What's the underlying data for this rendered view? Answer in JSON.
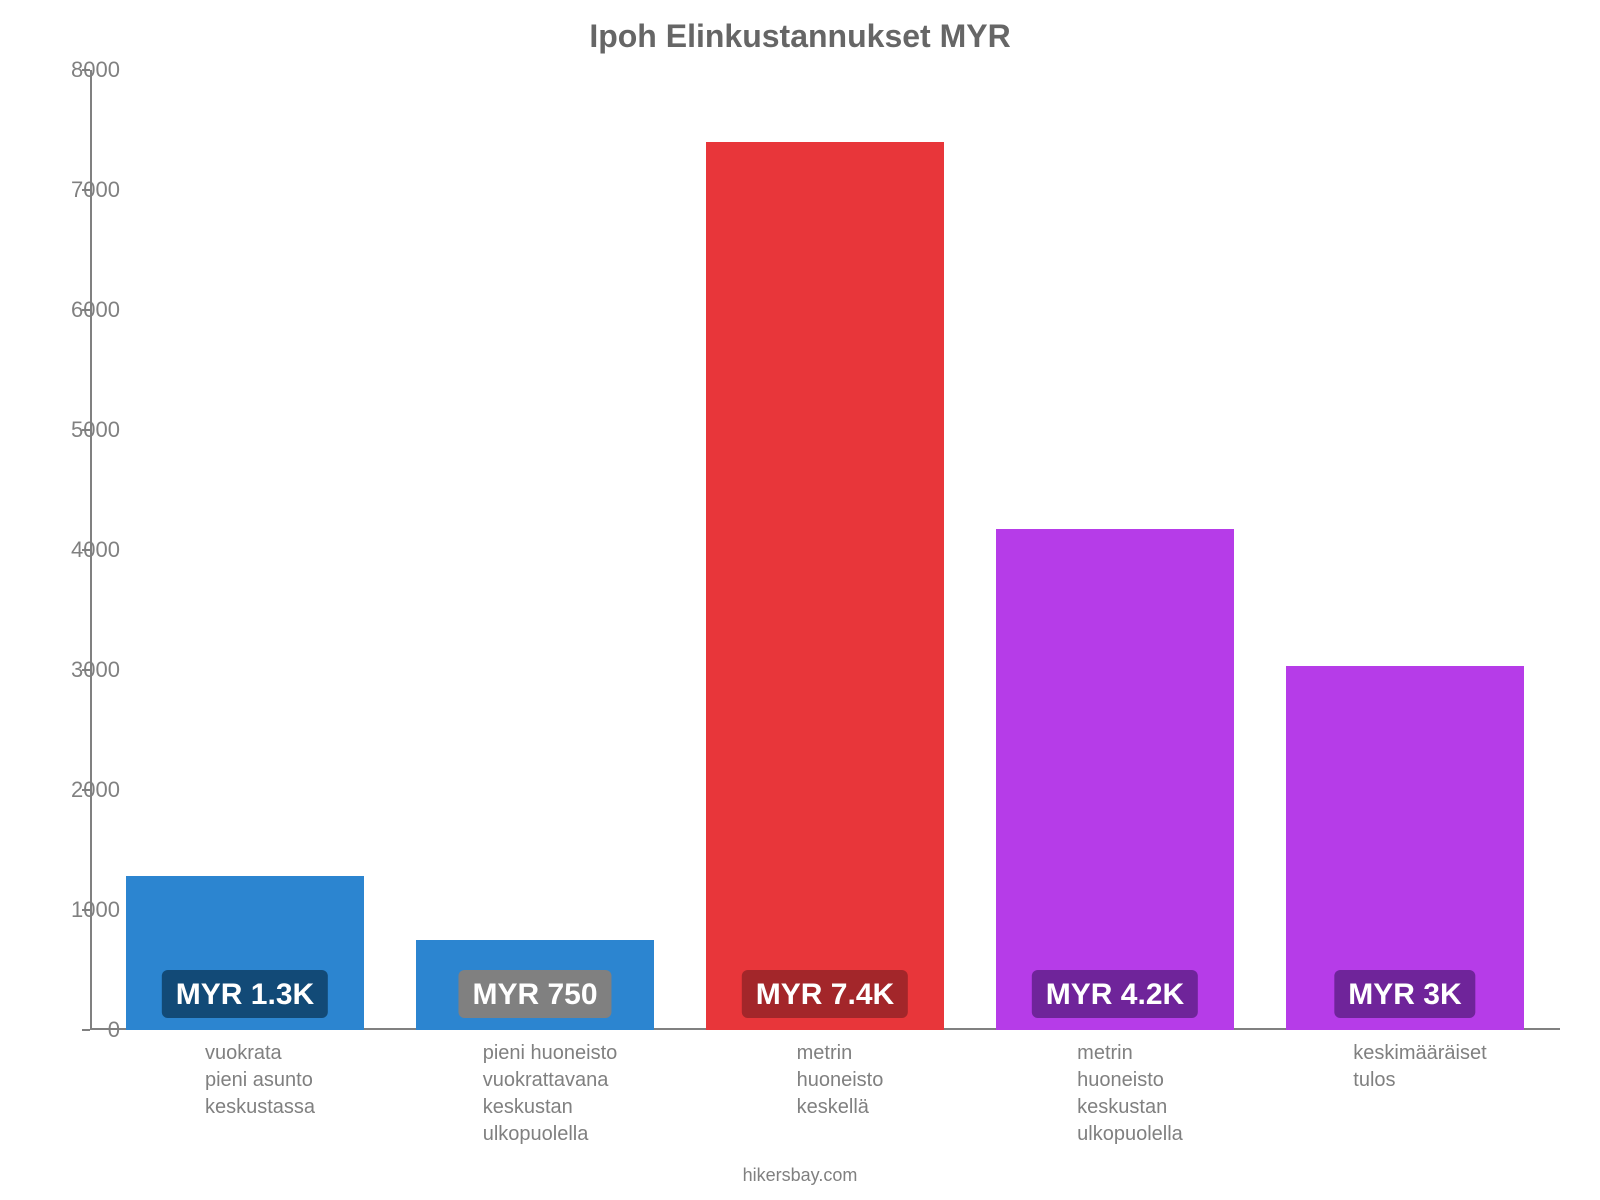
{
  "chart": {
    "type": "bar",
    "title": "Ipoh Elinkustannukset MYR",
    "title_fontsize": 32,
    "title_color": "#666666",
    "background_color": "#ffffff",
    "axis_color": "#808080",
    "tick_label_fontsize": 22,
    "x_label_fontsize": 20,
    "bar_width_ratio": 0.82,
    "ylim": [
      0,
      8000
    ],
    "ytick_step": 1000,
    "yticks": [
      0,
      1000,
      2000,
      3000,
      4000,
      5000,
      6000,
      7000,
      8000
    ],
    "categories": [
      "vuokrata\npieni asunto\nkeskustassa",
      "pieni huoneisto\nvuokrattavana\nkeskustan\nulkopuolella",
      "metrin\nhuoneisto\nkeskellä",
      "metrin\nhuoneisto\nkeskustan\nulkopuolella",
      "keskimääräiset\ntulos"
    ],
    "values": [
      1283,
      750,
      7400,
      4179,
      3034
    ],
    "value_labels": [
      "MYR 1.3K",
      "MYR 750",
      "MYR 7.4K",
      "MYR 4.2K",
      "MYR 3K"
    ],
    "bar_colors": [
      "#2c85d0",
      "#2c85d0",
      "#e8363a",
      "#b63ce8",
      "#b63ce8"
    ],
    "badge_colors": [
      "#124a77",
      "#808080",
      "#a3262a",
      "#6f249a",
      "#6f249a"
    ],
    "badge_fontsize": 30,
    "credit": "hikersbay.com",
    "credit_fontsize": 18
  }
}
